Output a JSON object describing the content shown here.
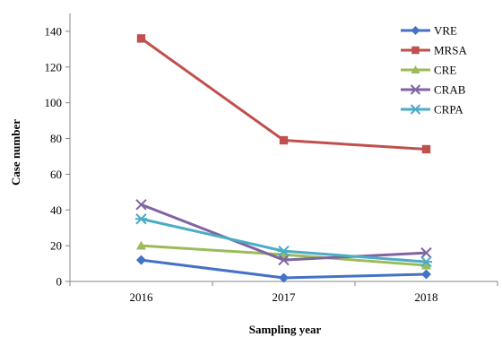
{
  "chart_data": {
    "type": "line",
    "title": "",
    "xlabel": "Sampling year",
    "ylabel": "Case number",
    "categories": [
      "2016",
      "2017",
      "2018"
    ],
    "ylim": [
      0,
      150
    ],
    "yticks": [
      0,
      20,
      40,
      60,
      80,
      100,
      120,
      140
    ],
    "grid": false,
    "legend": "top-right",
    "series": [
      {
        "name": "VRE",
        "values": [
          12,
          2,
          4
        ],
        "color": "#4472C4",
        "marker": "diamond"
      },
      {
        "name": "MRSA",
        "values": [
          136,
          79,
          74
        ],
        "color": "#C0504D",
        "marker": "square"
      },
      {
        "name": "CRE",
        "values": [
          20,
          15,
          9
        ],
        "color": "#9BBB59",
        "marker": "triangle"
      },
      {
        "name": "CRAB",
        "values": [
          43,
          12,
          16
        ],
        "color": "#8064A2",
        "marker": "x"
      },
      {
        "name": "CRPA",
        "values": [
          35,
          17,
          11
        ],
        "color": "#4BACC6",
        "marker": "star"
      }
    ]
  }
}
